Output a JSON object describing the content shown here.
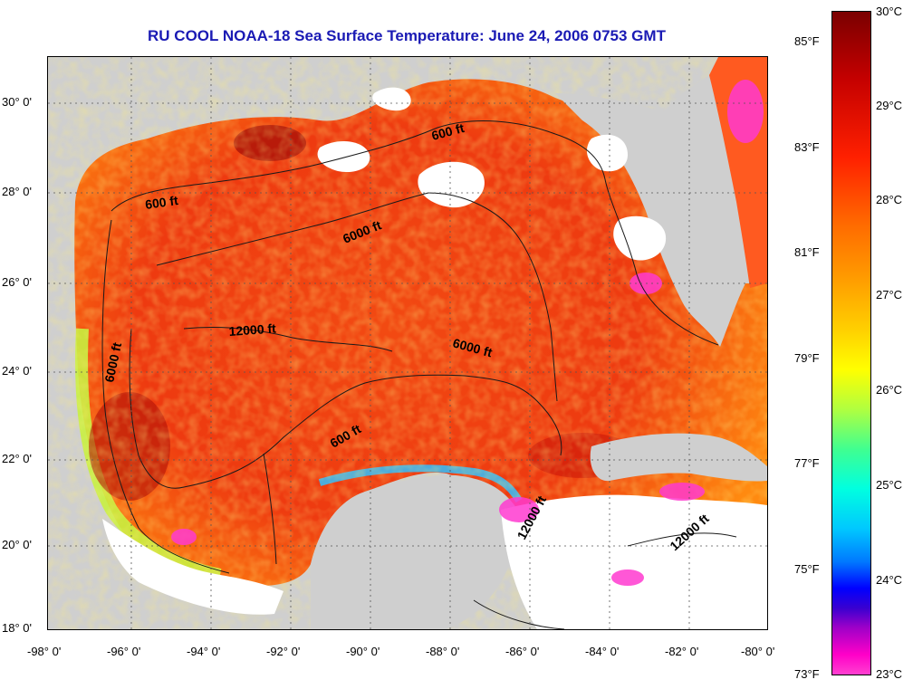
{
  "title": "RU COOL  NOAA-18  Sea Surface Temperature:  June 24, 2006 0753 GMT",
  "lat_labels": [
    "30° 0'",
    "28° 0'",
    "26° 0'",
    "24° 0'",
    "22° 0'",
    "20° 0'",
    "18° 0'"
  ],
  "lon_labels": [
    "-98° 0'",
    "-96° 0'",
    "-94° 0'",
    "-92° 0'",
    "-90° 0'",
    "-88° 0'",
    "-86° 0'",
    "-84° 0'",
    "-82° 0'",
    "-80° 0'"
  ],
  "contour_labels": [
    "600 ft",
    "600 ft",
    "600 ft",
    "6000 ft",
    "6000 ft",
    "6000 ft",
    "12000 ft",
    "12000 ft",
    "12000 ft"
  ],
  "colorbar": {
    "fahrenheit_labels": [
      "85°F",
      "83°F",
      "81°F",
      "79°F",
      "77°F",
      "75°F",
      "73°F"
    ],
    "celsius_labels": [
      "30°C",
      "29°C",
      "28°C",
      "27°C",
      "26°C",
      "25°C",
      "24°C",
      "23°C"
    ]
  },
  "colors": {
    "land": "#cfcfcf",
    "cloud": "#ffffff",
    "title": "#1a1ab4",
    "warm_core": "#e83a10"
  }
}
